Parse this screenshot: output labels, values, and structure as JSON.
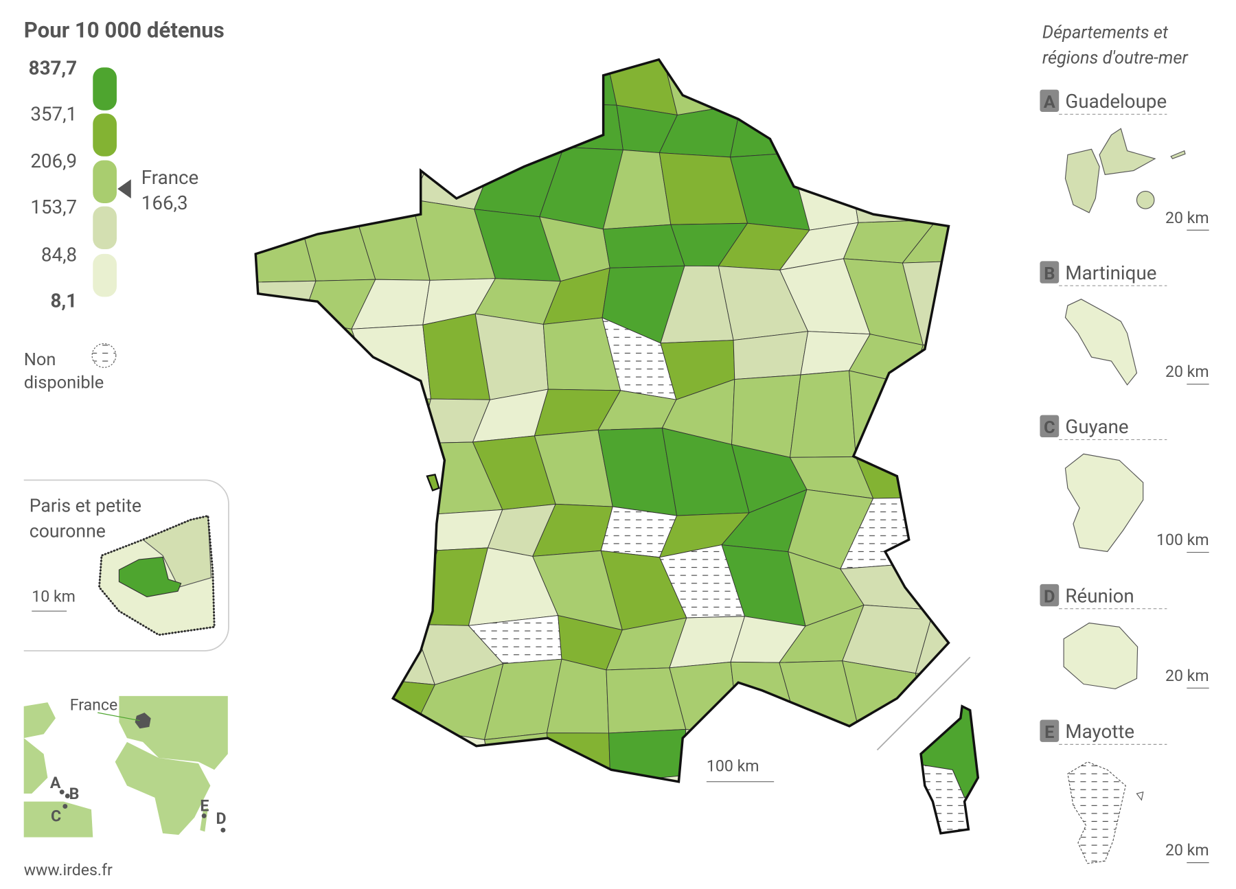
{
  "legend": {
    "title": "Pour 10 000 détenus",
    "breaks": [
      "837,7",
      "357,1",
      "206,9",
      "153,7",
      "84,8",
      "8,1"
    ],
    "colors": [
      "#4ea52f",
      "#83b333",
      "#a9cd6f",
      "#d3dfb1",
      "#e9f0d0"
    ],
    "national": {
      "label": "France",
      "value": "166,3"
    },
    "missing": [
      "Non",
      "disponible"
    ]
  },
  "main_map": {
    "scale": "100 km"
  },
  "paris_inset": {
    "title": [
      "Paris et petite",
      "couronne"
    ],
    "scale": "10 km"
  },
  "locator": {
    "country": "France",
    "markers": [
      "A",
      "B",
      "C",
      "D",
      "E"
    ]
  },
  "overseas": {
    "title": [
      "Départements et",
      "régions d'outre-mer"
    ],
    "items": [
      {
        "letter": "A",
        "name": "Guadeloupe",
        "scale": "20 km"
      },
      {
        "letter": "B",
        "name": "Martinique",
        "scale": "20 km"
      },
      {
        "letter": "C",
        "name": "Guyane",
        "scale": "100 km"
      },
      {
        "letter": "D",
        "name": "Réunion",
        "scale": "20 km"
      },
      {
        "letter": "E",
        "name": "Mayotte",
        "scale": "20 km"
      }
    ]
  },
  "footer": {
    "source": "www.irdes.fr"
  }
}
